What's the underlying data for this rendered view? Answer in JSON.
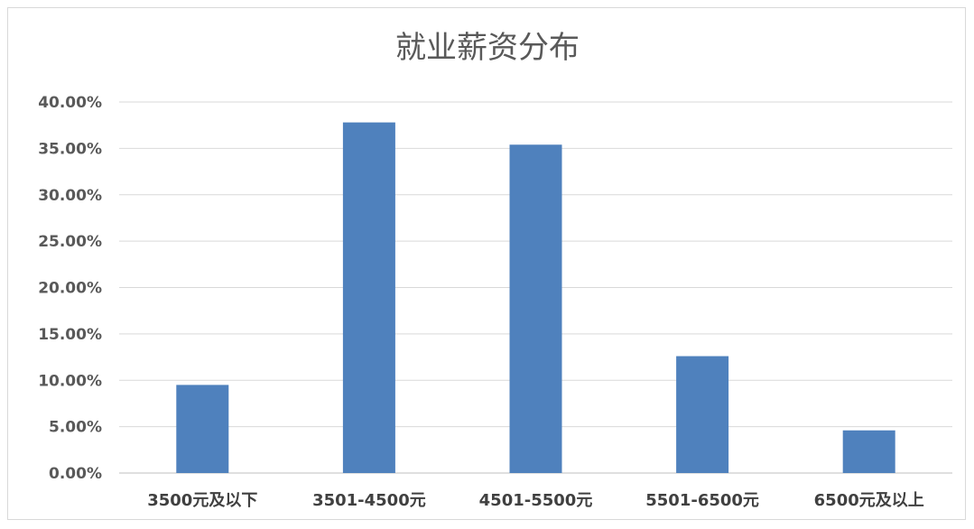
{
  "chart_data": {
    "type": "bar",
    "title": "就业薪资分布",
    "categories": [
      "3500元及以下",
      "3501-4500元",
      "4501-5500元",
      "5501-6500元",
      "6500元及以上"
    ],
    "values": [
      9.5,
      37.8,
      35.4,
      12.6,
      4.6
    ],
    "ylim": [
      0,
      40
    ],
    "yticks": [
      "0.00%",
      "5.00%",
      "10.00%",
      "15.00%",
      "20.00%",
      "25.00%",
      "30.00%",
      "35.00%",
      "40.00%"
    ],
    "bar_color": "#4f81bd",
    "grid": true,
    "legend": "none"
  }
}
